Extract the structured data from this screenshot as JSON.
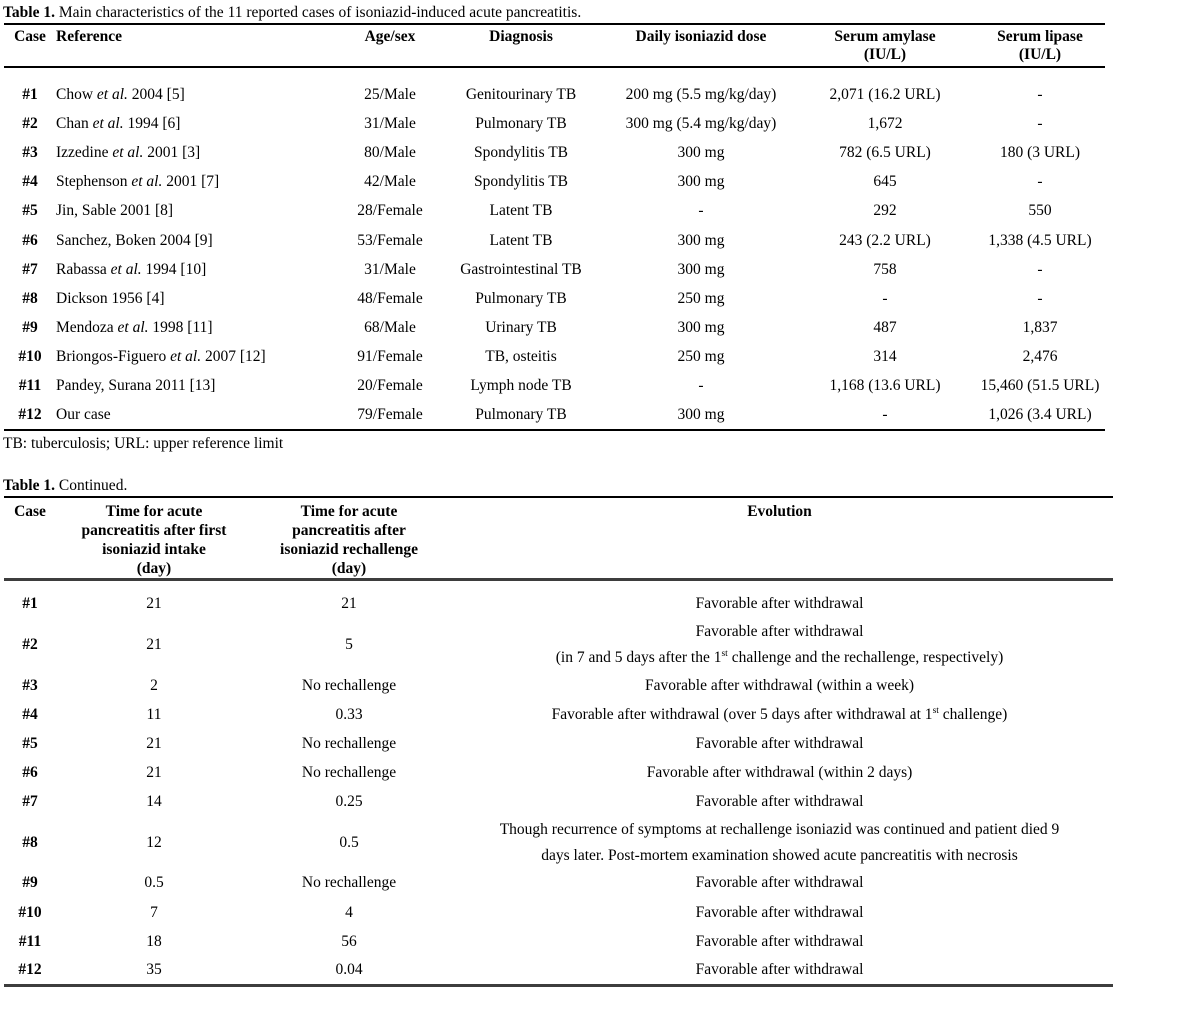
{
  "document": {
    "background": "#ffffff",
    "text_color": "#000000",
    "rule_color": "#000000",
    "thick_rule_color": "#3d3d3d"
  },
  "table1": {
    "caption": {
      "label": "Table 1.",
      "text": " Main characteristics of the 11 reported cases of isoniazid-induced acute pancreatitis."
    },
    "headers": [
      {
        "key": "case",
        "lines": [
          "Case"
        ]
      },
      {
        "key": "reference",
        "lines": [
          "Reference"
        ]
      },
      {
        "key": "age_sex",
        "lines": [
          "Age/sex"
        ]
      },
      {
        "key": "diagnosis",
        "lines": [
          "Diagnosis"
        ]
      },
      {
        "key": "dose",
        "lines": [
          "Daily isoniazid dose"
        ]
      },
      {
        "key": "amylase",
        "lines": [
          "Serum amylase",
          "(IU/L)"
        ]
      },
      {
        "key": "lipase",
        "lines": [
          "Serum lipase",
          "(IU/L)"
        ]
      }
    ],
    "rows": [
      {
        "case": "#1",
        "reference": [
          "Chow ",
          {
            "i": "et al."
          },
          " 2004 [5]"
        ],
        "age_sex": "25/Male",
        "diagnosis": "Genitourinary TB",
        "dose": "200 mg (5.5 mg/kg/day)",
        "amylase": "2,071 (16.2 URL)",
        "lipase": "-"
      },
      {
        "case": "#2",
        "reference": [
          "Chan ",
          {
            "i": "et al."
          },
          " 1994 [6]"
        ],
        "age_sex": "31/Male",
        "diagnosis": "Pulmonary TB",
        "dose": "300 mg (5.4 mg/kg/day)",
        "amylase": "1,672",
        "lipase": "-"
      },
      {
        "case": "#3",
        "reference": [
          "Izzedine ",
          {
            "i": "et al."
          },
          " 2001 [3]"
        ],
        "age_sex": "80/Male",
        "diagnosis": "Spondylitis TB",
        "dose": "300 mg",
        "amylase": "782 (6.5 URL)",
        "lipase": "180 (3 URL)"
      },
      {
        "case": "#4",
        "reference": [
          "Stephenson ",
          {
            "i": "et al."
          },
          " 2001 [7]"
        ],
        "age_sex": "42/Male",
        "diagnosis": "Spondylitis TB",
        "dose": "300 mg",
        "amylase": "645",
        "lipase": "-"
      },
      {
        "case": "#5",
        "reference": [
          "Jin, Sable 2001 [8]"
        ],
        "age_sex": "28/Female",
        "diagnosis": "Latent TB",
        "dose": "-",
        "amylase": "292",
        "lipase": "550"
      },
      {
        "case": "#6",
        "reference": [
          "Sanchez, Boken 2004 [9]"
        ],
        "age_sex": "53/Female",
        "diagnosis": "Latent TB",
        "dose": "300 mg",
        "amylase": "243 (2.2 URL)",
        "lipase": "1,338 (4.5 URL)"
      },
      {
        "case": "#7",
        "reference": [
          "Rabassa ",
          {
            "i": "et al."
          },
          " 1994 [10]"
        ],
        "age_sex": "31/Male",
        "diagnosis": "Gastrointestinal TB",
        "dose": "300 mg",
        "amylase": "758",
        "lipase": "-"
      },
      {
        "case": "#8",
        "reference": [
          "Dickson 1956 [4]"
        ],
        "age_sex": "48/Female",
        "diagnosis": "Pulmonary TB",
        "dose": "250 mg",
        "amylase": "-",
        "lipase": "-"
      },
      {
        "case": "#9",
        "reference": [
          "Mendoza ",
          {
            "i": "et al."
          },
          " 1998 [11]"
        ],
        "age_sex": "68/Male",
        "diagnosis": "Urinary TB",
        "dose": "300 mg",
        "amylase": "487",
        "lipase": "1,837"
      },
      {
        "case": "#10",
        "reference": [
          "Briongos-Figuero ",
          {
            "i": "et al."
          },
          " 2007 [12]"
        ],
        "age_sex": "91/Female",
        "diagnosis": "TB, osteitis",
        "dose": "250 mg",
        "amylase": "314",
        "lipase": "2,476"
      },
      {
        "case": "#11",
        "reference": [
          "Pandey, Surana 2011 [13]"
        ],
        "age_sex": "20/Female",
        "diagnosis": "Lymph node TB",
        "dose": "-",
        "amylase": "1,168 (13.6 URL)",
        "lipase": "15,460 (51.5 URL)"
      },
      {
        "case": "#12",
        "reference": [
          "Our case"
        ],
        "age_sex": "79/Female",
        "diagnosis": "Pulmonary TB",
        "dose": "300 mg",
        "amylase": "-",
        "lipase": "1,026 (3.4 URL)"
      }
    ],
    "footnote": "TB: tuberculosis; URL: upper reference limit"
  },
  "table2": {
    "caption": {
      "label": "Table 1.",
      "text": " Continued."
    },
    "headers": [
      {
        "key": "case",
        "lines": [
          "Case"
        ]
      },
      {
        "key": "first_intake",
        "lines": [
          "Time for acute",
          "pancreatitis after first",
          "isoniazid intake",
          "(day)"
        ]
      },
      {
        "key": "rechallenge",
        "lines": [
          "Time for acute",
          "pancreatitis after",
          "isoniazid rechallenge",
          "(day)"
        ]
      },
      {
        "key": "evolution",
        "lines": [
          "Evolution"
        ]
      }
    ],
    "rows": [
      {
        "case": "#1",
        "first_intake": "21",
        "rechallenge": "21",
        "evolution": [
          "Favorable after withdrawal"
        ]
      },
      {
        "case": "#2",
        "first_intake": "21",
        "rechallenge": "5",
        "evolution": [
          "Favorable after withdrawal",
          {
            "br": true
          },
          "(in 7 and 5 days after the 1",
          {
            "sup": "st"
          },
          " challenge and the rechallenge, respectively)"
        ]
      },
      {
        "case": "#3",
        "first_intake": "2",
        "rechallenge": "No rechallenge",
        "evolution": [
          "Favorable after withdrawal (within a week)"
        ]
      },
      {
        "case": "#4",
        "first_intake": "11",
        "rechallenge": "0.33",
        "evolution": [
          "Favorable after withdrawal (over 5 days after withdrawal at 1",
          {
            "sup": "st"
          },
          " challenge)"
        ]
      },
      {
        "case": "#5",
        "first_intake": "21",
        "rechallenge": "No rechallenge",
        "evolution": [
          "Favorable after withdrawal"
        ]
      },
      {
        "case": "#6",
        "first_intake": "21",
        "rechallenge": "No rechallenge",
        "evolution": [
          "Favorable after withdrawal (within 2 days)"
        ]
      },
      {
        "case": "#7",
        "first_intake": "14",
        "rechallenge": "0.25",
        "evolution": [
          "Favorable after withdrawal"
        ]
      },
      {
        "case": "#8",
        "first_intake": "12",
        "rechallenge": "0.5",
        "evolution": [
          "Though recurrence of symptoms at rechallenge isoniazid was continued and patient died 9",
          {
            "br": true
          },
          "days later. Post-mortem examination showed acute pancreatitis with necrosis"
        ]
      },
      {
        "case": "#9",
        "first_intake": "0.5",
        "rechallenge": "No rechallenge",
        "evolution": [
          "Favorable after withdrawal"
        ]
      },
      {
        "case": "#10",
        "first_intake": "7",
        "rechallenge": "4",
        "evolution": [
          "Favorable after withdrawal"
        ]
      },
      {
        "case": "#11",
        "first_intake": "18",
        "rechallenge": "56",
        "evolution": [
          "Favorable after withdrawal"
        ]
      },
      {
        "case": "#12",
        "first_intake": "35",
        "rechallenge": "0.04",
        "evolution": [
          "Favorable after withdrawal"
        ]
      }
    ]
  }
}
